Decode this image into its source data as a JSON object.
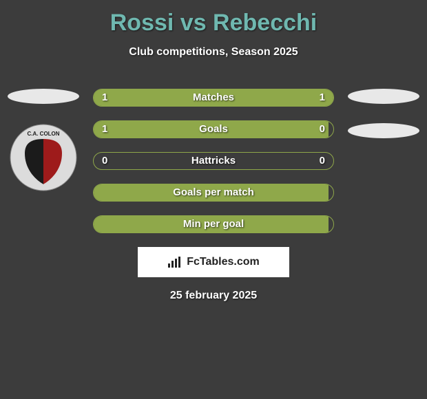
{
  "header": {
    "title": "Rossi vs Rebecchi",
    "subtitle": "Club competitions, Season 2025",
    "title_color": "#6fb8b0"
  },
  "left": {
    "ellipse_color": "#e8e8e8",
    "shield": {
      "ring_color": "#dcdcdc",
      "banner_text": "C.A. COLON",
      "left_color": "#1b1b1b",
      "right_color": "#9e1b1b"
    }
  },
  "right": {
    "ellipse_colors": [
      "#e8e8e8",
      "#e8e8e8"
    ]
  },
  "bars": {
    "border_color": "#8fa84a",
    "fill_color": "#8fa84a",
    "rows": [
      {
        "label": "Matches",
        "left_val": "1",
        "right_val": "1",
        "left_pct": 50,
        "right_pct": 50
      },
      {
        "label": "Goals",
        "left_val": "1",
        "right_val": "0",
        "left_pct": 98,
        "right_pct": 0
      },
      {
        "label": "Hattricks",
        "left_val": "0",
        "right_val": "0",
        "left_pct": 0,
        "right_pct": 0
      },
      {
        "label": "Goals per match",
        "left_val": "",
        "right_val": "",
        "left_pct": 98,
        "right_pct": 0
      },
      {
        "label": "Min per goal",
        "left_val": "",
        "right_val": "",
        "left_pct": 98,
        "right_pct": 0
      }
    ]
  },
  "brand": {
    "text": "FcTables.com"
  },
  "footer": {
    "date": "25 february 2025"
  }
}
